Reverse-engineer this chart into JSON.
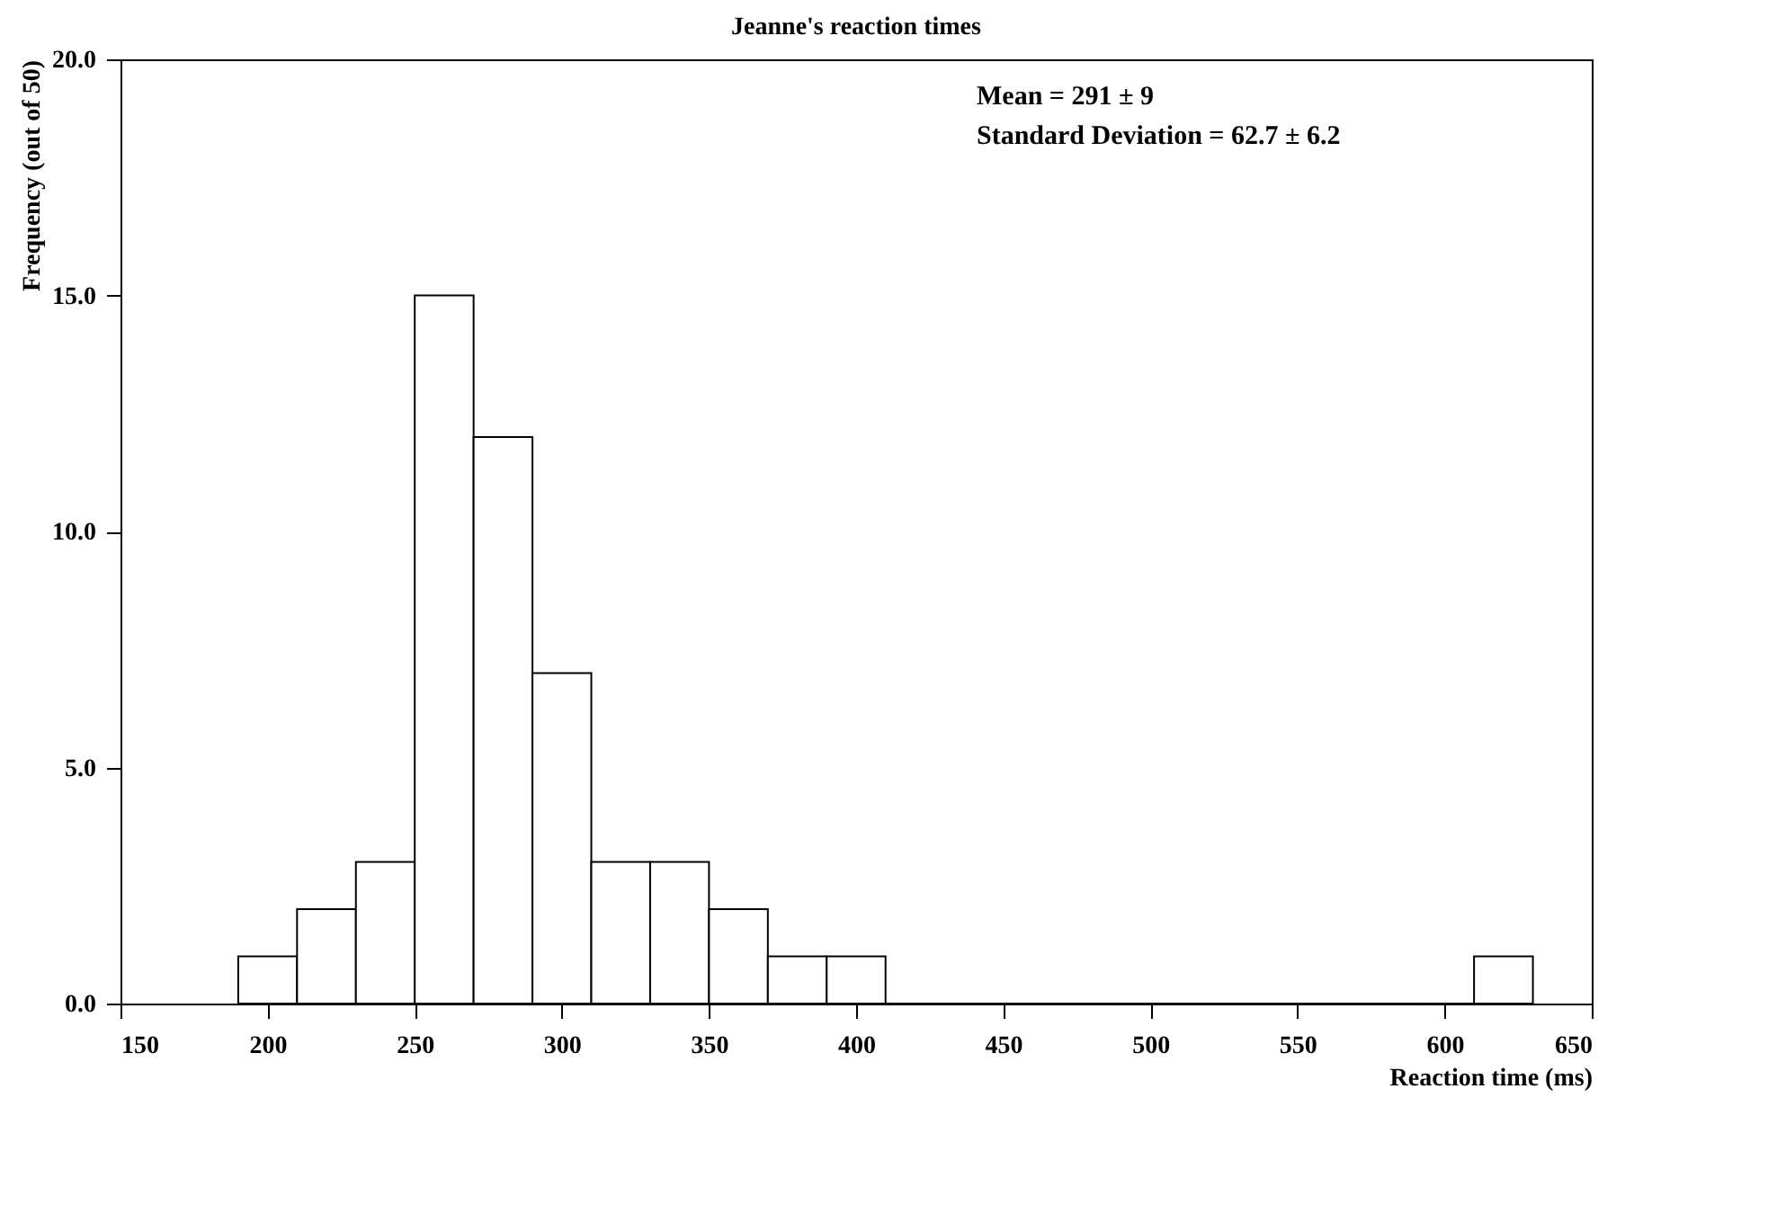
{
  "chart_data": {
    "type": "histogram",
    "title": "Jeanne's reaction times",
    "xlabel": "Reaction time (ms)",
    "ylabel": "Frequency (out of 50)",
    "bins": [
      190,
      210,
      230,
      250,
      270,
      290,
      310,
      330,
      350,
      370,
      390,
      410,
      430,
      450,
      470,
      490,
      510,
      530,
      550,
      570,
      590,
      610,
      630
    ],
    "values": [
      1,
      2,
      3,
      15,
      12,
      7,
      3,
      3,
      2,
      1,
      1,
      0,
      0,
      0,
      0,
      0,
      0,
      0,
      0,
      0,
      0,
      1
    ],
    "xlim": [
      150,
      650
    ],
    "xticks": [
      150,
      200,
      250,
      300,
      350,
      400,
      450,
      500,
      550,
      600,
      650
    ],
    "ylim": [
      0,
      20
    ],
    "yticks": [
      {
        "value": 0,
        "label": "0.0"
      },
      {
        "value": 5,
        "label": "5.0"
      },
      {
        "value": 10,
        "label": "10.0"
      },
      {
        "value": 15,
        "label": "15.0"
      },
      {
        "value": 20,
        "label": "20.0"
      }
    ],
    "annotations": [
      "Mean = 291 ± 9",
      "Standard Deviation = 62.7 ± 6.2"
    ],
    "grid": false
  }
}
